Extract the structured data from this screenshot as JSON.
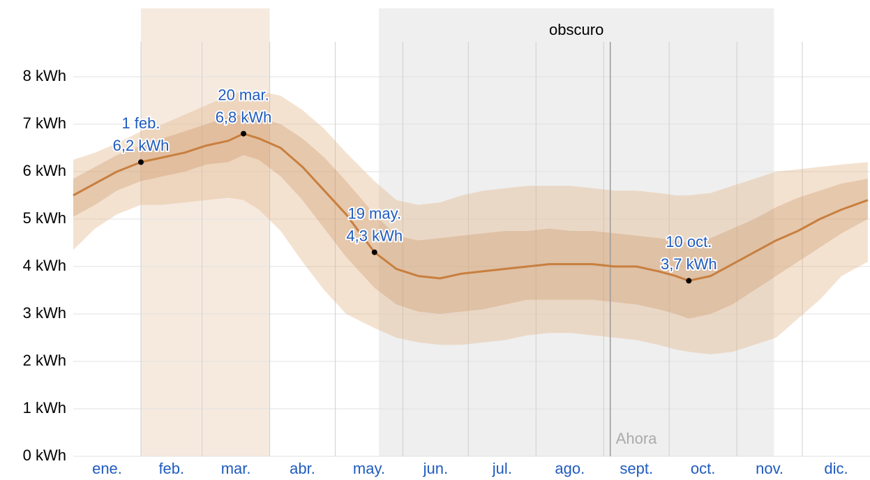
{
  "chart_data": {
    "type": "band-line",
    "x": [
      0,
      10,
      20,
      31,
      41,
      51,
      61,
      71,
      78,
      85,
      95,
      105,
      115,
      125,
      138,
      148,
      158,
      168,
      178,
      188,
      198,
      208,
      218,
      228,
      238,
      248,
      258,
      268,
      276,
      282,
      292,
      302,
      312,
      322,
      332,
      342,
      352,
      364
    ],
    "values": [
      5.5,
      5.75,
      6.0,
      6.2,
      6.3,
      6.4,
      6.55,
      6.65,
      6.8,
      6.7,
      6.5,
      6.1,
      5.6,
      5.1,
      4.3,
      3.95,
      3.8,
      3.75,
      3.85,
      3.9,
      3.95,
      4.0,
      4.05,
      4.05,
      4.05,
      4.0,
      4.0,
      3.9,
      3.8,
      3.7,
      3.8,
      4.05,
      4.3,
      4.55,
      4.75,
      5.0,
      5.2,
      5.4
    ],
    "color": "#c87f3f",
    "bands": [
      {
        "upper": [
          6.25,
          6.4,
          6.6,
          6.85,
          7.0,
          7.2,
          7.4,
          7.6,
          7.7,
          7.7,
          7.6,
          7.3,
          6.9,
          6.4,
          5.8,
          5.4,
          5.3,
          5.35,
          5.5,
          5.6,
          5.65,
          5.7,
          5.7,
          5.7,
          5.65,
          5.6,
          5.6,
          5.55,
          5.5,
          5.5,
          5.55,
          5.7,
          5.85,
          6.0,
          6.05,
          6.1,
          6.15,
          6.2
        ],
        "lower": [
          4.35,
          4.8,
          5.1,
          5.3,
          5.3,
          5.35,
          5.4,
          5.45,
          5.4,
          5.2,
          4.75,
          4.1,
          3.5,
          3.0,
          2.7,
          2.5,
          2.4,
          2.35,
          2.35,
          2.4,
          2.45,
          2.55,
          2.6,
          2.6,
          2.55,
          2.5,
          2.45,
          2.35,
          2.25,
          2.2,
          2.15,
          2.2,
          2.35,
          2.5,
          2.9,
          3.3,
          3.8,
          4.1
        ],
        "color": "rgba(225,180,135,0.38)"
      },
      {
        "upper": [
          5.85,
          6.1,
          6.35,
          6.55,
          6.7,
          6.85,
          7.0,
          7.15,
          7.2,
          7.15,
          7.0,
          6.7,
          6.3,
          5.8,
          5.1,
          4.65,
          4.55,
          4.6,
          4.65,
          4.7,
          4.75,
          4.75,
          4.8,
          4.75,
          4.75,
          4.7,
          4.65,
          4.6,
          4.55,
          4.5,
          4.6,
          4.8,
          5.0,
          5.25,
          5.45,
          5.6,
          5.75,
          5.85
        ],
        "lower": [
          5.05,
          5.3,
          5.6,
          5.8,
          5.9,
          6.0,
          6.15,
          6.2,
          6.35,
          6.25,
          5.9,
          5.4,
          4.8,
          4.2,
          3.55,
          3.2,
          3.05,
          3.0,
          3.05,
          3.1,
          3.2,
          3.3,
          3.3,
          3.3,
          3.3,
          3.25,
          3.2,
          3.1,
          3.0,
          2.9,
          3.0,
          3.2,
          3.5,
          3.8,
          4.1,
          4.4,
          4.7,
          5.0
        ],
        "color": "rgba(200,140,85,0.3)"
      }
    ],
    "xlim": [
      0,
      365
    ],
    "xticks": [
      {
        "value": 15.5,
        "label": "ene."
      },
      {
        "value": 45,
        "label": "feb."
      },
      {
        "value": 74.5,
        "label": "mar."
      },
      {
        "value": 105,
        "label": "abr."
      },
      {
        "value": 135.5,
        "label": "may."
      },
      {
        "value": 166,
        "label": "jun."
      },
      {
        "value": 196.5,
        "label": "jul."
      },
      {
        "value": 227.5,
        "label": "ago."
      },
      {
        "value": 258,
        "label": "sept."
      },
      {
        "value": 288.5,
        "label": "oct."
      },
      {
        "value": 319,
        "label": "nov."
      },
      {
        "value": 349.5,
        "label": "dic."
      }
    ],
    "xgrid": [
      31,
      59,
      90,
      120,
      151,
      181,
      212,
      243,
      273,
      304,
      334
    ],
    "ylim": [
      0,
      8
    ],
    "yticks": [
      {
        "value": 0,
        "label": "0 kWh"
      },
      {
        "value": 1,
        "label": "1 kWh"
      },
      {
        "value": 2,
        "label": "2 kWh"
      },
      {
        "value": 3,
        "label": "3 kWh"
      },
      {
        "value": 4,
        "label": "4 kWh"
      },
      {
        "value": 5,
        "label": "5 kWh"
      },
      {
        "value": 6,
        "label": "6 kWh"
      },
      {
        "value": 7,
        "label": "7 kWh"
      },
      {
        "value": 8,
        "label": "8 kWh"
      }
    ],
    "grid": true,
    "regions": [
      {
        "start": 31,
        "end": 90,
        "color": "#f6eadf"
      },
      {
        "start": 140,
        "end": 321,
        "color": "#efefef",
        "label": "obscuro"
      }
    ],
    "now": {
      "x": 246,
      "label": "Ahora"
    },
    "annotations": [
      {
        "x": 31,
        "y": 6.2,
        "lines": [
          "1 feb.",
          "6,2 kWh"
        ]
      },
      {
        "x": 78,
        "y": 6.8,
        "lines": [
          "20 mar.",
          "6,8 kWh"
        ]
      },
      {
        "x": 138,
        "y": 4.3,
        "lines": [
          "19 may.",
          "4,3 kWh"
        ]
      },
      {
        "x": 282,
        "y": 3.7,
        "lines": [
          "10 oct.",
          "3,7 kWh"
        ]
      }
    ]
  }
}
